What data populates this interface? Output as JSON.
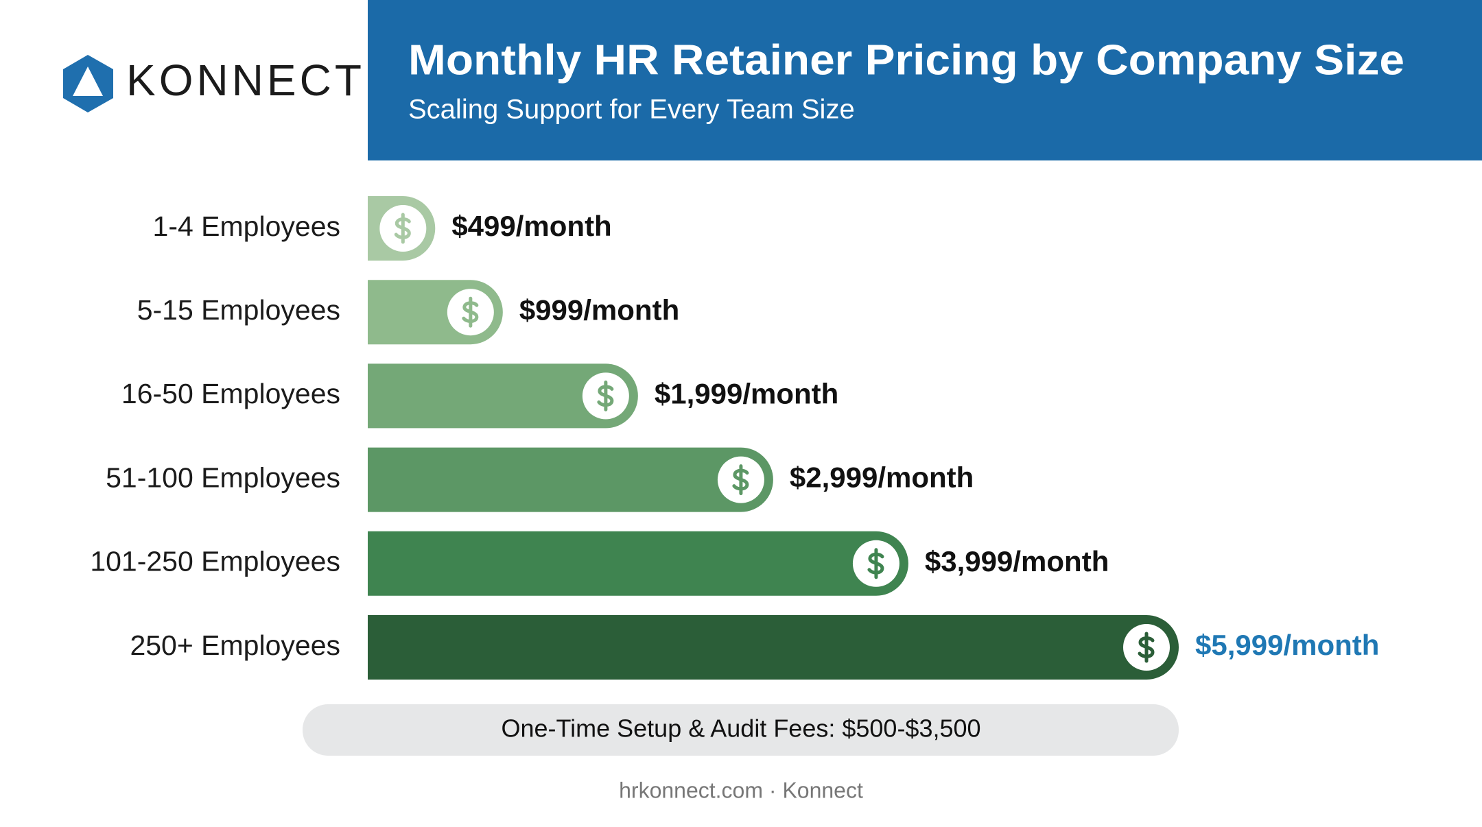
{
  "logo": "KONNECT",
  "chart_data": {
    "type": "bar",
    "orientation": "horizontal",
    "title": "Monthly HR Retainer Pricing by Company Size",
    "subtitle": "Scaling Support for Every Team Size",
    "categories": [
      "1-4 Employees",
      "5-15 Employees",
      "16-50 Employees",
      "51-100 Employees",
      "101-250 Employees",
      "250+ Employees"
    ],
    "values": [
      499,
      999,
      1999,
      2999,
      3999,
      5999
    ],
    "value_labels": [
      "$499/month",
      "$999/month",
      "$1,999/month",
      "$2,999/month",
      "$3,999/month",
      "$5,999/month"
    ],
    "colors": [
      "#a9c9a4",
      "#8fba8c",
      "#74a877",
      "#5c9765",
      "#3f8450",
      "#2b5e38"
    ],
    "value_label_colors": [
      "#111111",
      "#111111",
      "#111111",
      "#111111",
      "#111111",
      "#1f78b4"
    ]
  },
  "note": "One-Time Setup & Audit Fees: $500-$3,500",
  "footer": "hrkonnect.com · Konnect"
}
